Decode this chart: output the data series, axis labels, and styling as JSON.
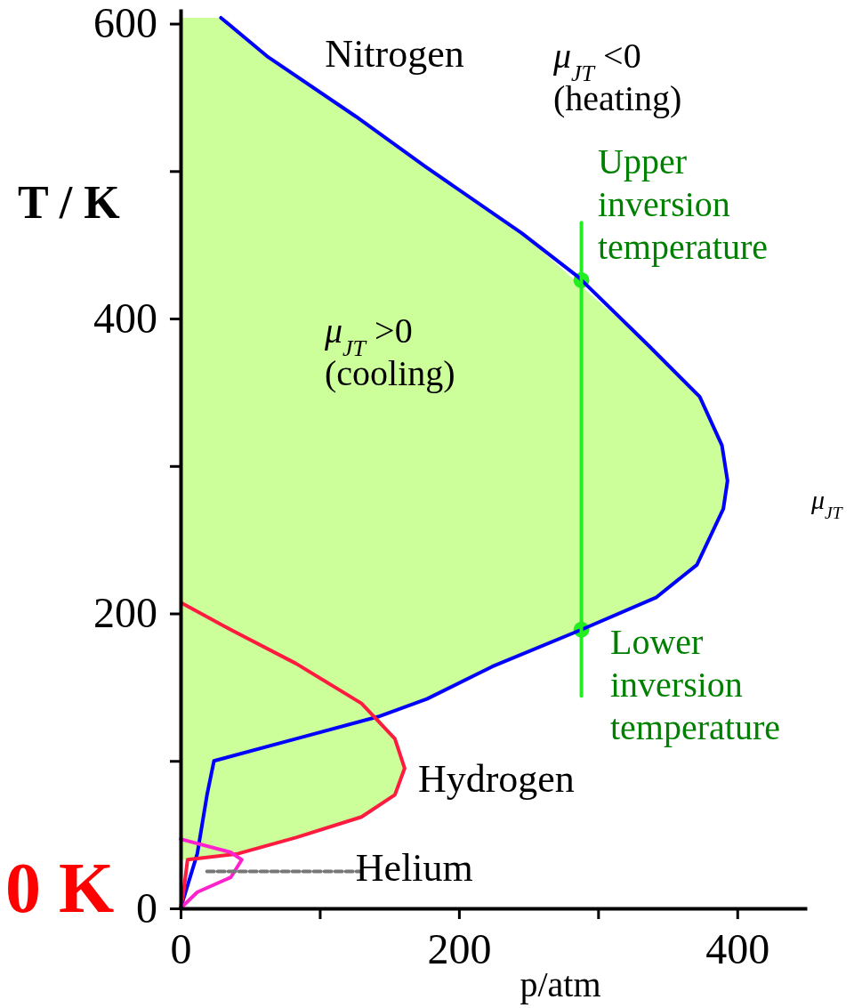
{
  "chart_data": {
    "type": "line",
    "xlabel": "p/atm",
    "ylabel": "T / K",
    "xlim": [
      0,
      450
    ],
    "ylim": [
      0,
      610
    ],
    "xticks": [
      0,
      {
        "value": 100,
        "label": null
      },
      200,
      {
        "value": 300,
        "label": null
      },
      400
    ],
    "yticks": [
      0,
      {
        "value": 100,
        "label": null
      },
      200,
      {
        "value": 300,
        "label": null
      },
      400,
      {
        "value": 500,
        "label": null
      },
      600
    ],
    "grid": false,
    "marker": "none",
    "line_style": "solid",
    "series": [
      {
        "type": "area",
        "color": "#ccff99",
        "x": [
          0,
          29,
          62,
          126,
          176,
          245,
          337,
          373,
          389,
          393,
          390,
          371,
          342,
          224,
          177,
          142,
          150,
          158,
          161,
          154,
          130,
          83,
          41,
          5,
          0
        ],
        "values": [
          604,
          604,
          578,
          537,
          503,
          458,
          381,
          347,
          314,
          290,
          271,
          233,
          211,
          164,
          142,
          130,
          120,
          105,
          95,
          77,
          62,
          48,
          37,
          33,
          33
        ]
      },
      {
        "name": "Nitrogen",
        "color": "#0000ff",
        "x": [
          29,
          62,
          126,
          176,
          245,
          286,
          337,
          373,
          389,
          393,
          390,
          371,
          342,
          288,
          224,
          177,
          142,
          83,
          24,
          19,
          12,
          0
        ],
        "values": [
          604,
          578,
          537,
          503,
          458,
          428,
          381,
          347,
          314,
          290,
          271,
          233,
          211,
          189,
          164,
          142,
          130,
          115,
          100,
          77,
          37,
          0
        ]
      },
      {
        "name": "Hydrogen",
        "color": "#ff1a40",
        "x": [
          1,
          36,
          83,
          130,
          154,
          161,
          154,
          130,
          83,
          41,
          5,
          2,
          0
        ],
        "values": [
          207,
          189,
          166,
          139,
          115,
          95,
          77,
          62,
          48,
          37,
          33,
          10,
          0
        ]
      },
      {
        "name": "Helium",
        "color": "#ff22cc",
        "x": [
          0,
          36,
          44,
          36,
          12,
          0
        ],
        "values": [
          47,
          38,
          33,
          21,
          11,
          0
        ]
      },
      {
        "color": "#777777",
        "line_style": "dashed",
        "x": [
          19,
          130
        ],
        "values": [
          25,
          25
        ]
      },
      {
        "color": "#22ee22",
        "x": [
          288,
          288
        ],
        "values": [
          144,
          465
        ]
      },
      {
        "type": "scatter",
        "marker": "circle",
        "color": "#22ee22",
        "x": [
          288,
          288
        ],
        "values": [
          426,
          189
        ]
      }
    ],
    "annotations": [
      "μ$_{JT}$>0\n(cooling)",
      "μ$_{JT}$<0\n(heating)",
      "Upper\ninversion\ntemperature",
      "Lower\ninversion\ntemperature",
      "μ$_{JT}$",
      "0 K"
    ]
  }
}
